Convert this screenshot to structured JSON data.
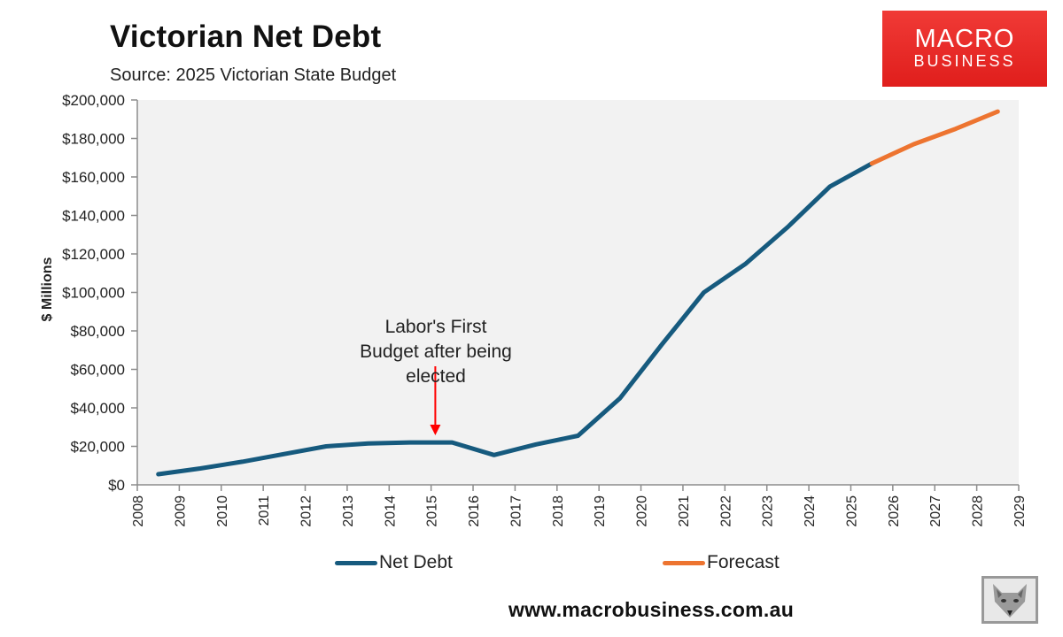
{
  "header": {
    "title": "Victorian Net Debt",
    "subtitle": "Source: 2025 Victorian State Budget"
  },
  "logo": {
    "line1": "MACRO",
    "line2": "BUSINESS",
    "color": "#e8231f"
  },
  "footer": {
    "url": "www.macrobusiness.com.au",
    "mascot_icon": "fox-icon"
  },
  "annotation": {
    "line1": "Labor's First",
    "line2": "Budget after being",
    "line3": "elected",
    "arrow_color": "#ff0000",
    "target_year": 2015.1
  },
  "legend": [
    {
      "label": "Net Debt",
      "color": "#165a7e"
    },
    {
      "label": "Forecast",
      "color": "#ed7430"
    }
  ],
  "chart_data": {
    "type": "line",
    "title": "Victorian Net Debt",
    "subtitle": "Source: 2025 Victorian State Budget",
    "xlabel": "",
    "ylabel": "$ Millions",
    "ylim": [
      0,
      200000
    ],
    "xlim": [
      2008,
      2029
    ],
    "grid": false,
    "legend_position": "bottom",
    "y_ticks": [
      "$0",
      "$20,000",
      "$40,000",
      "$60,000",
      "$80,000",
      "$100,000",
      "$120,000",
      "$140,000",
      "$160,000",
      "$180,000",
      "$200,000"
    ],
    "x_ticks": [
      "2008",
      "2009",
      "2010",
      "2011",
      "2012",
      "2013",
      "2014",
      "2015",
      "2016",
      "2017",
      "2018",
      "2019",
      "2020",
      "2021",
      "2022",
      "2023",
      "2024",
      "2025",
      "2026",
      "2027",
      "2028",
      "2029"
    ],
    "series": [
      {
        "name": "Net Debt",
        "color": "#165a7e",
        "x": [
          2008.5,
          2009.5,
          2010.5,
          2011.5,
          2012.5,
          2013.5,
          2014.5,
          2015.5,
          2016.5,
          2017.5,
          2018.5,
          2019.5,
          2020.5,
          2021.5,
          2022.5,
          2023.5,
          2024.5,
          2025.5
        ],
        "values": [
          5500,
          8500,
          12000,
          16000,
          20000,
          21500,
          22000,
          22000,
          15500,
          21000,
          25500,
          45000,
          73000,
          100000,
          115000,
          134000,
          155000,
          167000
        ]
      },
      {
        "name": "Forecast",
        "color": "#ed7430",
        "x": [
          2025.5,
          2026.5,
          2027.5,
          2028.5
        ],
        "values": [
          167000,
          177000,
          185000,
          194000
        ]
      }
    ],
    "annotations": [
      {
        "text": "Labor's First Budget after being elected",
        "x": 2015.1,
        "arrow": true
      }
    ]
  }
}
